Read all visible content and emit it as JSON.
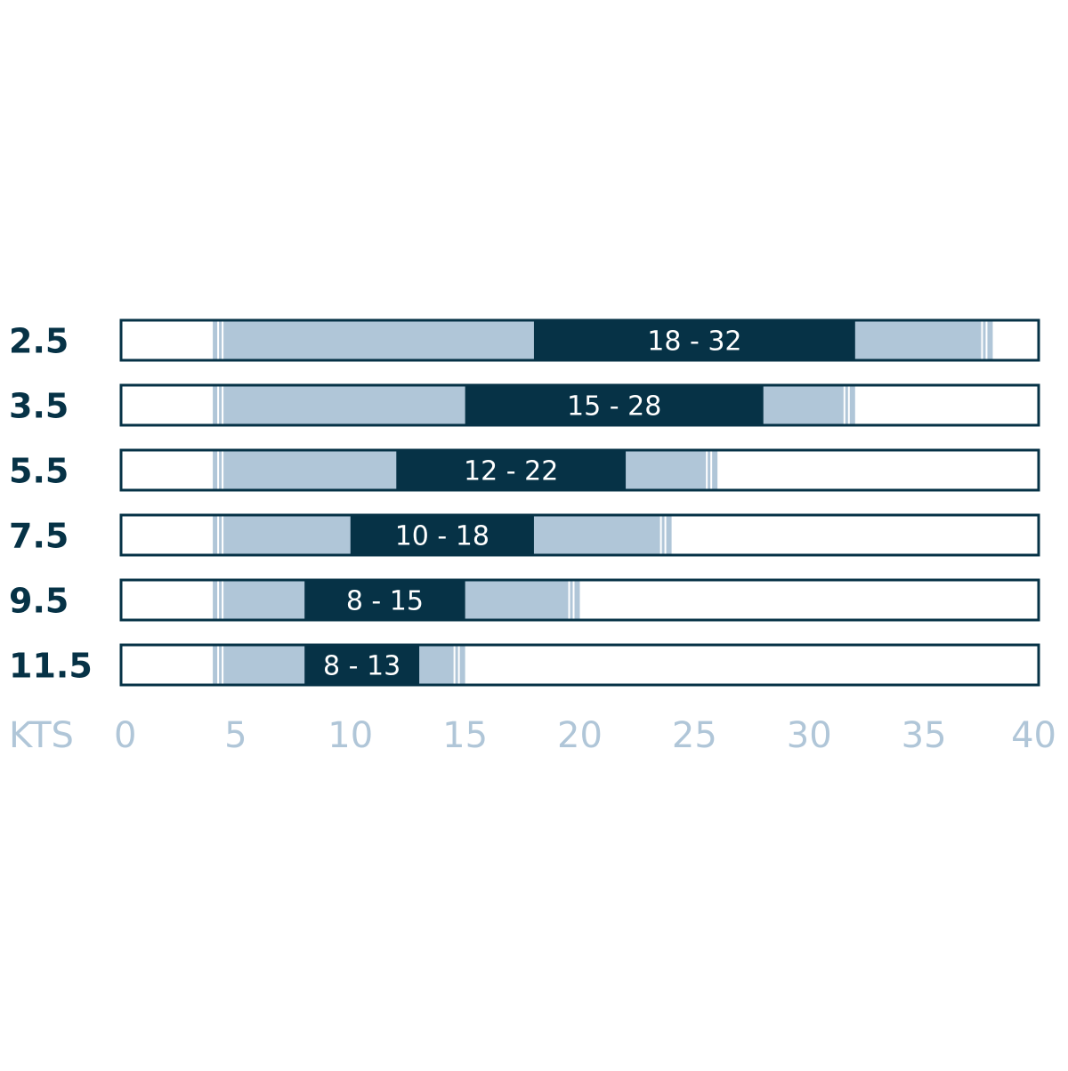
{
  "chart_data": {
    "type": "bar",
    "orientation": "horizontal",
    "chart_kind": "wind range chart",
    "categories": [
      "2.5",
      "3.5",
      "5.5",
      "7.5",
      "9.5",
      "11.5"
    ],
    "series": [
      {
        "role": "extended_range",
        "values": [
          [
            4,
            38
          ],
          [
            4,
            32
          ],
          [
            4,
            26
          ],
          [
            4,
            24
          ],
          [
            4,
            20
          ],
          [
            4,
            15
          ]
        ]
      },
      {
        "role": "ideal_range",
        "values": [
          [
            18,
            32
          ],
          [
            15,
            28
          ],
          [
            12,
            22
          ],
          [
            10,
            18
          ],
          [
            8,
            15
          ],
          [
            8,
            13
          ]
        ]
      }
    ],
    "data_labels": [
      "18 - 32",
      "15 - 28",
      "12 - 22",
      "10 - 18",
      "8 - 15",
      "8 - 13"
    ],
    "x_axis": {
      "label": "KTS",
      "range": [
        0,
        40
      ],
      "ticks": [
        "0",
        "5",
        "10",
        "15",
        "20",
        "25",
        "30",
        "35",
        "40"
      ]
    },
    "grid": false,
    "legend": "none"
  },
  "colors": {
    "dark": "#063246",
    "light": "#b0c6d8",
    "frame": "#063246",
    "axis_text": "#b0c6d8",
    "background": "#ffffff"
  }
}
